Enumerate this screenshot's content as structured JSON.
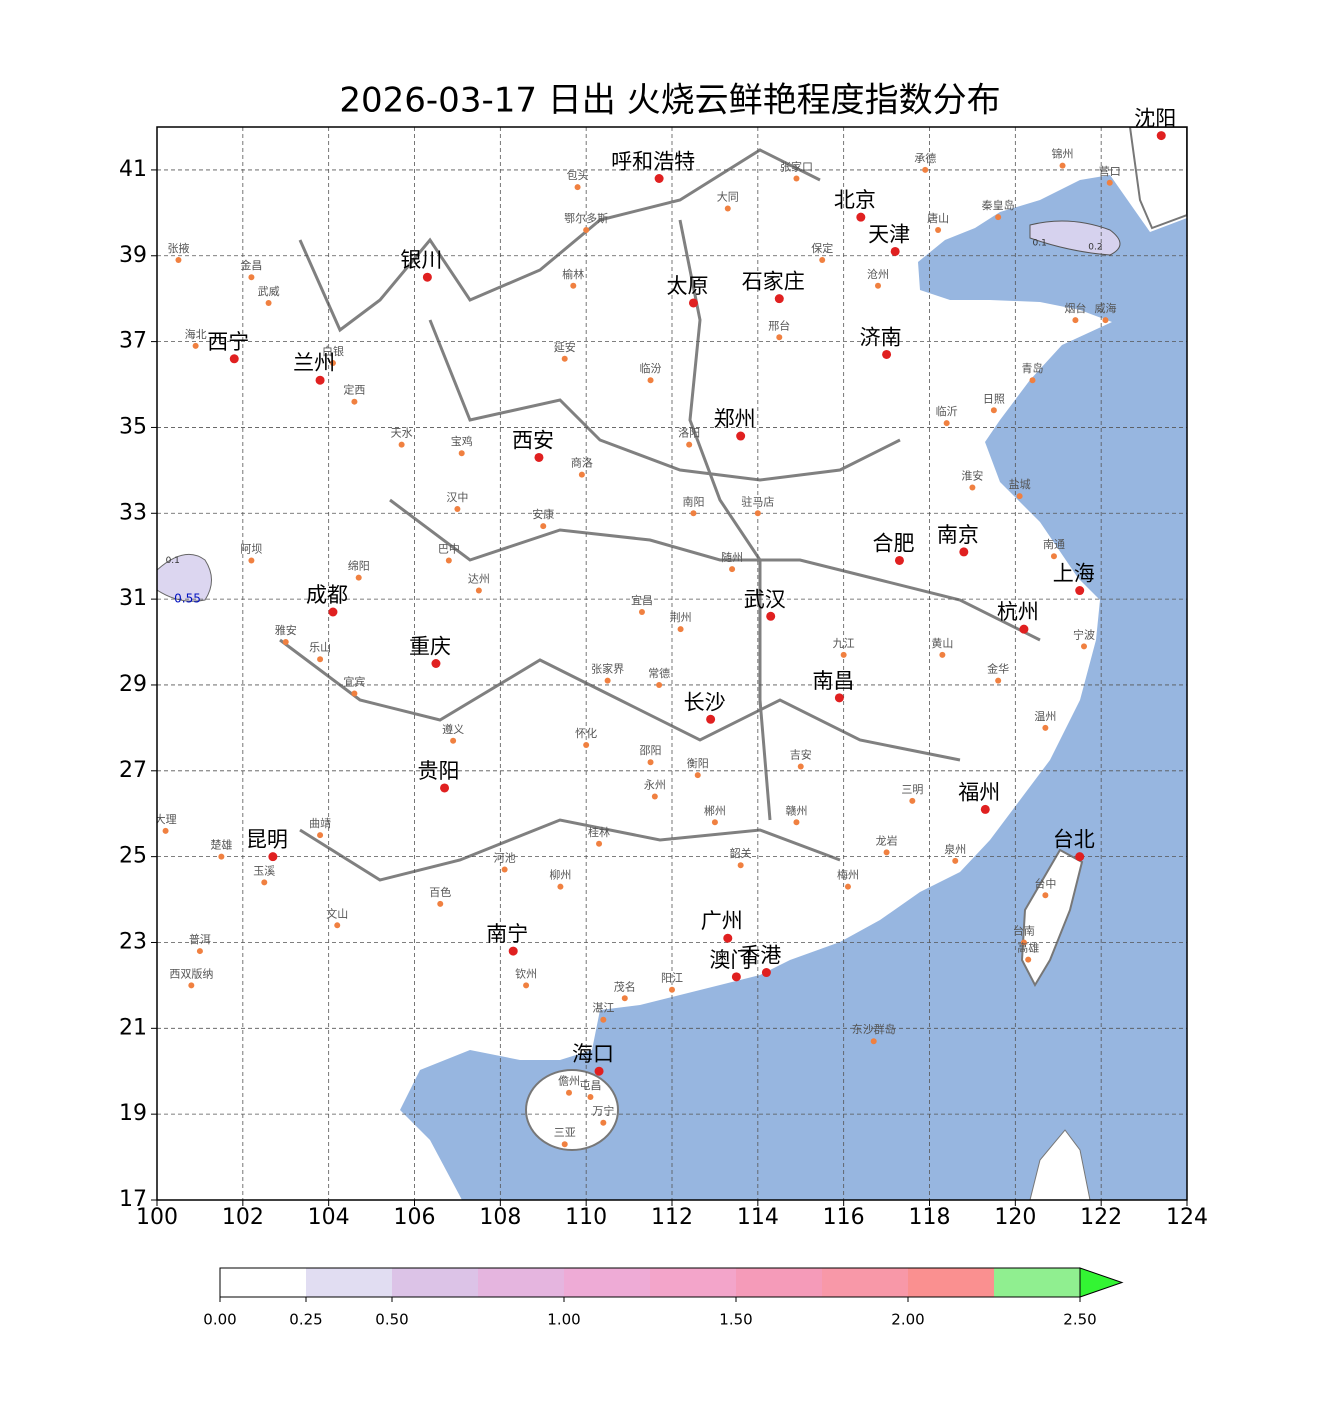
{
  "map": {
    "title": "2026-03-17 日出 火烧云鲜艳程度指数分布",
    "xlim": [
      100,
      124
    ],
    "ylim": [
      17,
      42
    ],
    "xticks": [
      100,
      102,
      104,
      106,
      108,
      110,
      112,
      114,
      116,
      118,
      120,
      122,
      124
    ],
    "yticks": [
      17,
      19,
      21,
      23,
      25,
      27,
      29,
      31,
      33,
      35,
      37,
      39,
      41
    ],
    "grid": true,
    "sea_color": "#97b6e0",
    "major_cities": [
      {
        "name": "呼和浩特",
        "lon": 111.7,
        "lat": 40.8
      },
      {
        "name": "北京",
        "lon": 116.4,
        "lat": 39.9
      },
      {
        "name": "天津",
        "lon": 117.2,
        "lat": 39.1
      },
      {
        "name": "沈阳",
        "lon": 123.4,
        "lat": 41.8
      },
      {
        "name": "银川",
        "lon": 106.3,
        "lat": 38.5
      },
      {
        "name": "太原",
        "lon": 112.5,
        "lat": 37.9
      },
      {
        "name": "石家庄",
        "lon": 114.5,
        "lat": 38.0
      },
      {
        "name": "西宁",
        "lon": 101.8,
        "lat": 36.6
      },
      {
        "name": "兰州",
        "lon": 103.8,
        "lat": 36.1
      },
      {
        "name": "济南",
        "lon": 117.0,
        "lat": 36.7
      },
      {
        "name": "郑州",
        "lon": 113.6,
        "lat": 34.8
      },
      {
        "name": "西安",
        "lon": 108.9,
        "lat": 34.3
      },
      {
        "name": "合肥",
        "lon": 117.3,
        "lat": 31.9
      },
      {
        "name": "南京",
        "lon": 118.8,
        "lat": 32.1
      },
      {
        "name": "上海",
        "lon": 121.5,
        "lat": 31.2
      },
      {
        "name": "成都",
        "lon": 104.1,
        "lat": 30.7
      },
      {
        "name": "武汉",
        "lon": 114.3,
        "lat": 30.6
      },
      {
        "name": "杭州",
        "lon": 120.2,
        "lat": 30.3
      },
      {
        "name": "重庆",
        "lon": 106.5,
        "lat": 29.5
      },
      {
        "name": "长沙",
        "lon": 112.9,
        "lat": 28.2
      },
      {
        "name": "南昌",
        "lon": 115.9,
        "lat": 28.7
      },
      {
        "name": "贵阳",
        "lon": 106.7,
        "lat": 26.6
      },
      {
        "name": "福州",
        "lon": 119.3,
        "lat": 26.1
      },
      {
        "name": "昆明",
        "lon": 102.7,
        "lat": 25.0
      },
      {
        "name": "台北",
        "lon": 121.5,
        "lat": 25.0
      },
      {
        "name": "南宁",
        "lon": 108.3,
        "lat": 22.8
      },
      {
        "name": "广州",
        "lon": 113.3,
        "lat": 23.1
      },
      {
        "name": "澳门",
        "lon": 113.5,
        "lat": 22.2
      },
      {
        "name": "香港",
        "lon": 114.2,
        "lat": 22.3
      },
      {
        "name": "海口",
        "lon": 110.3,
        "lat": 20.0
      }
    ],
    "minor_cities": [
      {
        "name": "张掖",
        "lon": 100.5,
        "lat": 38.9
      },
      {
        "name": "金昌",
        "lon": 102.2,
        "lat": 38.5
      },
      {
        "name": "武威",
        "lon": 102.6,
        "lat": 37.9
      },
      {
        "name": "海北",
        "lon": 100.9,
        "lat": 36.9
      },
      {
        "name": "白银",
        "lon": 104.1,
        "lat": 36.5
      },
      {
        "name": "定西",
        "lon": 104.6,
        "lat": 35.6
      },
      {
        "name": "天水",
        "lon": 105.7,
        "lat": 34.6
      },
      {
        "name": "宝鸡",
        "lon": 107.1,
        "lat": 34.4
      },
      {
        "name": "延安",
        "lon": 109.5,
        "lat": 36.6
      },
      {
        "name": "榆林",
        "lon": 109.7,
        "lat": 38.3
      },
      {
        "name": "包头",
        "lon": 109.8,
        "lat": 40.6
      },
      {
        "name": "鄂尔多斯",
        "lon": 110.0,
        "lat": 39.6
      },
      {
        "name": "大同",
        "lon": 113.3,
        "lat": 40.1
      },
      {
        "name": "张家口",
        "lon": 114.9,
        "lat": 40.8
      },
      {
        "name": "承德",
        "lon": 117.9,
        "lat": 41.0
      },
      {
        "name": "唐山",
        "lon": 118.2,
        "lat": 39.6
      },
      {
        "name": "保定",
        "lon": 115.5,
        "lat": 38.9
      },
      {
        "name": "邢台",
        "lon": 114.5,
        "lat": 37.1
      },
      {
        "name": "临汾",
        "lon": 111.5,
        "lat": 36.1
      },
      {
        "name": "洛阳",
        "lon": 112.4,
        "lat": 34.6
      },
      {
        "name": "商洛",
        "lon": 109.9,
        "lat": 33.9
      },
      {
        "name": "汉中",
        "lon": 107.0,
        "lat": 33.1
      },
      {
        "name": "安康",
        "lon": 109.0,
        "lat": 32.7
      },
      {
        "name": "南阳",
        "lon": 112.5,
        "lat": 33.0
      },
      {
        "name": "驻马店",
        "lon": 114.0,
        "lat": 33.0
      },
      {
        "name": "淮安",
        "lon": 119.0,
        "lat": 33.6
      },
      {
        "name": "盐城",
        "lon": 120.1,
        "lat": 33.4
      },
      {
        "name": "临沂",
        "lon": 118.4,
        "lat": 35.1
      },
      {
        "name": "青岛",
        "lon": 120.4,
        "lat": 36.1
      },
      {
        "name": "烟台",
        "lon": 121.4,
        "lat": 37.5
      },
      {
        "name": "威海",
        "lon": 122.1,
        "lat": 37.5
      },
      {
        "name": "日照",
        "lon": 119.5,
        "lat": 35.4
      },
      {
        "name": "南通",
        "lon": 120.9,
        "lat": 32.0
      },
      {
        "name": "宁波",
        "lon": 121.6,
        "lat": 29.9
      },
      {
        "name": "金华",
        "lon": 119.6,
        "lat": 29.1
      },
      {
        "name": "温州",
        "lon": 120.7,
        "lat": 28.0
      },
      {
        "name": "黄山",
        "lon": 118.3,
        "lat": 29.7
      },
      {
        "name": "九江",
        "lon": 116.0,
        "lat": 29.7
      },
      {
        "name": "宜昌",
        "lon": 111.3,
        "lat": 30.7
      },
      {
        "name": "荆州",
        "lon": 112.2,
        "lat": 30.3
      },
      {
        "name": "随州",
        "lon": 113.4,
        "lat": 31.7
      },
      {
        "name": "达州",
        "lon": 107.5,
        "lat": 31.2
      },
      {
        "name": "巴中",
        "lon": 106.8,
        "lat": 31.9
      },
      {
        "name": "绵阳",
        "lon": 104.7,
        "lat": 31.5
      },
      {
        "name": "阿坝",
        "lon": 102.2,
        "lat": 31.9
      },
      {
        "name": "雅安",
        "lon": 103.0,
        "lat": 30.0
      },
      {
        "name": "乐山",
        "lon": 103.8,
        "lat": 29.6
      },
      {
        "name": "宜宾",
        "lon": 104.6,
        "lat": 28.8
      },
      {
        "name": "遵义",
        "lon": 106.9,
        "lat": 27.7
      },
      {
        "name": "张家界",
        "lon": 110.5,
        "lat": 29.1
      },
      {
        "name": "常德",
        "lon": 111.7,
        "lat": 29.0
      },
      {
        "name": "怀化",
        "lon": 110.0,
        "lat": 27.6
      },
      {
        "name": "邵阳",
        "lon": 111.5,
        "lat": 27.2
      },
      {
        "name": "衡阳",
        "lon": 112.6,
        "lat": 26.9
      },
      {
        "name": "永州",
        "lon": 111.6,
        "lat": 26.4
      },
      {
        "name": "郴州",
        "lon": 113.0,
        "lat": 25.8
      },
      {
        "name": "吉安",
        "lon": 115.0,
        "lat": 27.1
      },
      {
        "name": "赣州",
        "lon": 114.9,
        "lat": 25.8
      },
      {
        "name": "三明",
        "lon": 117.6,
        "lat": 26.3
      },
      {
        "name": "龙岩",
        "lon": 117.0,
        "lat": 25.1
      },
      {
        "name": "泉州",
        "lon": 118.6,
        "lat": 24.9
      },
      {
        "name": "梅州",
        "lon": 116.1,
        "lat": 24.3
      },
      {
        "name": "韶关",
        "lon": 113.6,
        "lat": 24.8
      },
      {
        "name": "桂林",
        "lon": 110.3,
        "lat": 25.3
      },
      {
        "name": "柳州",
        "lon": 109.4,
        "lat": 24.3
      },
      {
        "name": "河池",
        "lon": 108.1,
        "lat": 24.7
      },
      {
        "name": "百色",
        "lon": 106.6,
        "lat": 23.9
      },
      {
        "name": "曲靖",
        "lon": 103.8,
        "lat": 25.5
      },
      {
        "name": "大理",
        "lon": 100.2,
        "lat": 25.6
      },
      {
        "name": "楚雄",
        "lon": 101.5,
        "lat": 25.0
      },
      {
        "name": "玉溪",
        "lon": 102.5,
        "lat": 24.4
      },
      {
        "name": "普洱",
        "lon": 101.0,
        "lat": 22.8
      },
      {
        "name": "西双版纳",
        "lon": 100.8,
        "lat": 22.0
      },
      {
        "name": "文山",
        "lon": 104.2,
        "lat": 23.4
      },
      {
        "name": "钦州",
        "lon": 108.6,
        "lat": 22.0
      },
      {
        "name": "湛江",
        "lon": 110.4,
        "lat": 21.2
      },
      {
        "name": "茂名",
        "lon": 110.9,
        "lat": 21.7
      },
      {
        "name": "阳江",
        "lon": 112.0,
        "lat": 21.9
      },
      {
        "name": "东沙群岛",
        "lon": 116.7,
        "lat": 20.7
      },
      {
        "name": "儋州",
        "lon": 109.6,
        "lat": 19.5
      },
      {
        "name": "屯昌",
        "lon": 110.1,
        "lat": 19.4
      },
      {
        "name": "万宁",
        "lon": 110.4,
        "lat": 18.8
      },
      {
        "name": "三亚",
        "lon": 109.5,
        "lat": 18.3
      },
      {
        "name": "台中",
        "lon": 120.7,
        "lat": 24.1
      },
      {
        "name": "台南",
        "lon": 120.2,
        "lat": 23.0
      },
      {
        "name": "高雄",
        "lon": 120.3,
        "lat": 22.6
      },
      {
        "name": "锦州",
        "lon": 121.1,
        "lat": 41.1
      },
      {
        "name": "营口",
        "lon": 122.2,
        "lat": 40.7
      },
      {
        "name": "秦皇岛",
        "lon": 119.6,
        "lat": 39.9
      },
      {
        "name": "沧州",
        "lon": 116.8,
        "lat": 38.3
      }
    ],
    "contour_labels": [
      {
        "level": 0.1,
        "lon": 100.2,
        "lat": 31.9
      },
      {
        "level": 0.55,
        "lon": 100.4,
        "lat": 31.0
      },
      {
        "level": 0.1,
        "lon": 120.4,
        "lat": 39.3
      },
      {
        "level": 0.2,
        "lon": 121.7,
        "lat": 39.2
      }
    ],
    "colorbar": {
      "bounds": [
        0,
        0.25,
        0.5,
        0.75,
        1.0,
        1.25,
        1.5,
        1.75,
        2.0,
        2.25,
        2.5
      ],
      "colors": [
        "#ffffff",
        "#e1ddf2",
        "#dcc3e7",
        "#e5b5df",
        "#eeabd6",
        "#f3a5ca",
        "#f59bb9",
        "#f898a8",
        "#fa9090",
        "#90ef90",
        "#33f533"
      ],
      "ticks": [
        {
          "value": 0,
          "label": "0.00"
        },
        {
          "value": 0.25,
          "label": "0.25"
        },
        {
          "value": 0.5,
          "label": "0.50"
        },
        {
          "value": 1.0,
          "label": "1.00"
        },
        {
          "value": 1.5,
          "label": "1.50"
        },
        {
          "value": 2.0,
          "label": "2.00"
        },
        {
          "value": 2.5,
          "label": "2.50"
        }
      ]
    }
  }
}
